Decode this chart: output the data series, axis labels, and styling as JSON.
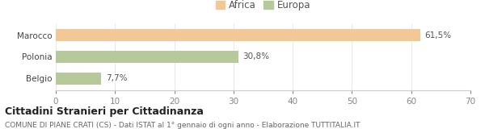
{
  "categories": [
    "Marocco",
    "Polonia",
    "Belgio"
  ],
  "values": [
    61.5,
    30.8,
    7.7
  ],
  "labels": [
    "61,5%",
    "30,8%",
    "7,7%"
  ],
  "colors": [
    "#F2C896",
    "#B5C99A",
    "#B5C99A"
  ],
  "legend": [
    {
      "label": "Africa",
      "color": "#F2C896"
    },
    {
      "label": "Europa",
      "color": "#B5C99A"
    }
  ],
  "xlim": [
    0,
    70
  ],
  "xticks": [
    0,
    10,
    20,
    30,
    40,
    50,
    60,
    70
  ],
  "title": "Cittadini Stranieri per Cittadinanza",
  "subtitle": "COMUNE DI PIANE CRATI (CS) - Dati ISTAT al 1° gennaio di ogni anno - Elaborazione TUTTITALIA.IT",
  "background_color": "#ffffff",
  "bar_height": 0.55,
  "title_fontsize": 9,
  "subtitle_fontsize": 6.5,
  "label_fontsize": 7.5,
  "tick_fontsize": 7.5,
  "legend_fontsize": 8.5
}
